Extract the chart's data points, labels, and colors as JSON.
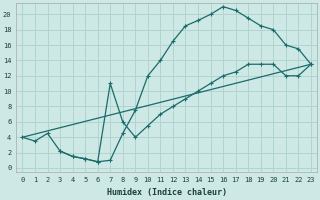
{
  "xlabel": "Humidex (Indice chaleur)",
  "background_color": "#cde8e5",
  "grid_color": "#b0d4d0",
  "line_color": "#1a6b6b",
  "xlim": [
    -0.5,
    23.5
  ],
  "ylim": [
    -0.5,
    21.5
  ],
  "xticks": [
    0,
    1,
    2,
    3,
    4,
    5,
    6,
    7,
    8,
    9,
    10,
    11,
    12,
    13,
    14,
    15,
    16,
    17,
    18,
    19,
    20,
    21,
    22,
    23
  ],
  "yticks": [
    0,
    2,
    4,
    6,
    8,
    10,
    12,
    14,
    16,
    18,
    20
  ],
  "line1_x": [
    0,
    1,
    2,
    3,
    4,
    5,
    6,
    7,
    8,
    9,
    10,
    11,
    12,
    13,
    14,
    15,
    16,
    17,
    18,
    19,
    20,
    21,
    22,
    23
  ],
  "line1_y": [
    4,
    3.5,
    4.5,
    2.2,
    1.5,
    1.2,
    0.8,
    1.0,
    4.5,
    7.5,
    12,
    14,
    16.5,
    18.5,
    19.2,
    20.0,
    21.0,
    20.5,
    19.5,
    18.5,
    18.0,
    16.0,
    15.5,
    13.5
  ],
  "line2_x": [
    0,
    23
  ],
  "line2_y": [
    4,
    13.5
  ],
  "line3_x": [
    3,
    4,
    5,
    6,
    7,
    8,
    9,
    10,
    11,
    12,
    13,
    14,
    15,
    16,
    17,
    18,
    19,
    20,
    21,
    22,
    23
  ],
  "line3_y": [
    2.2,
    1.5,
    1.2,
    0.8,
    11.0,
    6.0,
    4.0,
    5.5,
    7.0,
    8.0,
    9.0,
    10.0,
    11.0,
    12.0,
    12.5,
    13.5,
    13.5,
    13.5,
    12.0,
    12.0,
    13.5
  ]
}
